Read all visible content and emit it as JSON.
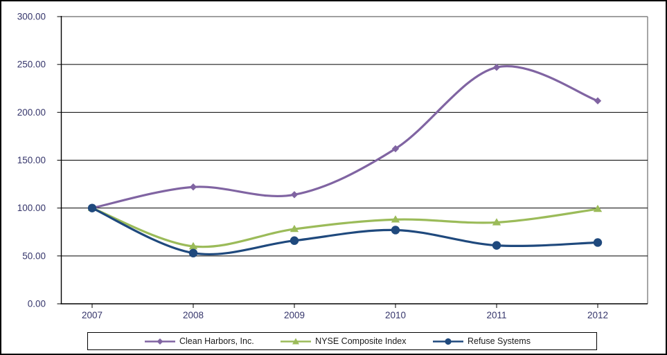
{
  "chart_data": {
    "type": "line",
    "title": "",
    "categories": [
      "2007",
      "2008",
      "2009",
      "2010",
      "2011",
      "2012"
    ],
    "series": [
      {
        "name": "Clean Harbors, Inc.",
        "marker": "diamond",
        "color": "#8064A2",
        "values": [
          100,
          122,
          114,
          162,
          247,
          212
        ]
      },
      {
        "name": "NYSE Composite Index",
        "marker": "triangle",
        "color": "#9BBB59",
        "values": [
          100,
          60,
          78,
          88,
          85,
          99
        ]
      },
      {
        "name": "Refuse Systems",
        "marker": "circle",
        "color": "#1F497D",
        "values": [
          100,
          53,
          66,
          77,
          61,
          64
        ]
      }
    ],
    "y_axis": {
      "ticks": [
        "300.00",
        "250.00",
        "200.00",
        "150.00",
        "100.00",
        "50.00",
        "0.00"
      ],
      "step": 50
    },
    "ylim": [
      0,
      300
    ],
    "xlabel": "",
    "ylabel": "",
    "grid": true,
    "smooth_lines": true,
    "legend_position": "bottom",
    "colors": {
      "axis_label": "#35356B",
      "gridline": "#000000",
      "plot_border": "#808080",
      "frame_border": "#000000",
      "legend_text": "#1A1A1A",
      "background": "#FFFFFF"
    }
  }
}
